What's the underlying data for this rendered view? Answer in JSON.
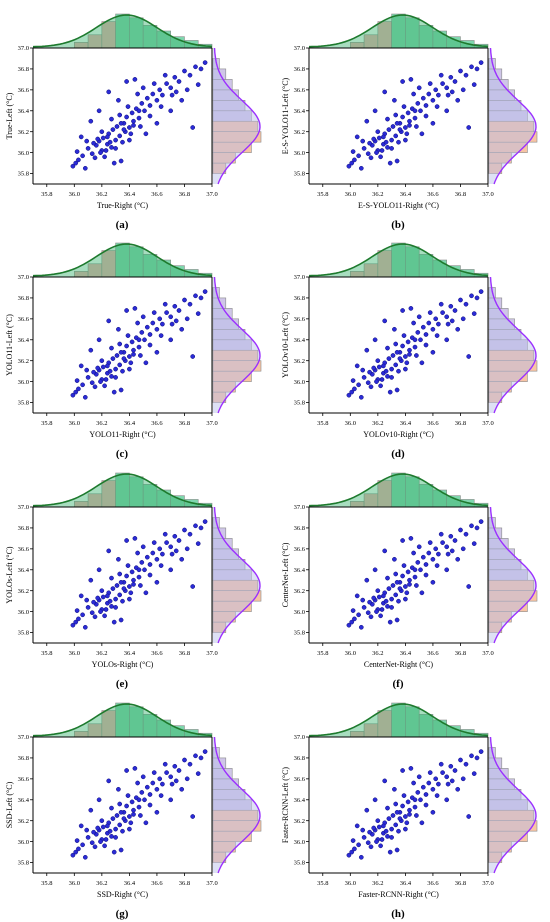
{
  "colors": {
    "point": "#2b2bd6",
    "point_edge": "#0c0c7a",
    "top_hist_left": "#f4aeb0",
    "top_hist_right": "#7fd6ae",
    "top_fill": "#3cb371",
    "top_curve": "#1e7a2e",
    "right_hist_bottom": "#f7c4a4",
    "right_hist_top": "#cfc6e8",
    "right_fill": "#b6bce8",
    "right_curve": "#9b30ff",
    "axis": "#000000"
  },
  "axis_ticks": {
    "x": [
      "35.8",
      "36.0",
      "36.2",
      "36.4",
      "36.6",
      "36.8",
      "37.0"
    ],
    "y": [
      "35.8",
      "36.0",
      "36.2",
      "36.4",
      "36.6",
      "36.8",
      "37.0"
    ]
  },
  "panels": [
    {
      "label": "(a)",
      "xlabel": "True-Right (°C)",
      "ylabel": "True-Left (°C)"
    },
    {
      "label": "(b)",
      "xlabel": "E-S-YOLO11-Right (°C)",
      "ylabel": "E-S-YOLO11-Left (°C)"
    },
    {
      "label": "(c)",
      "xlabel": "YOLO11-Right (°C)",
      "ylabel": "YOLO11-Left (°C)"
    },
    {
      "label": "(d)",
      "xlabel": "YOLOv10-Right (°C)",
      "ylabel": "YOLOv10-Left (°C)"
    },
    {
      "label": "(e)",
      "xlabel": "YOLOs-Right (°C)",
      "ylabel": "YOLOs-Left (°C)"
    },
    {
      "label": "(f)",
      "xlabel": "CenterNet-Right (°C)",
      "ylabel": "CenterNet-Left (°C)"
    },
    {
      "label": "(g)",
      "xlabel": "SSD-Right (°C)",
      "ylabel": "SSD-Left (°C)"
    },
    {
      "label": "(h)",
      "xlabel": "Faster-RCNN-Right (°C)",
      "ylabel": "Faster-RCNN-Left (°C)"
    }
  ],
  "chart_data": {
    "type": "scatter",
    "xlim": [
      35.7,
      37.0
    ],
    "ylim": [
      35.7,
      37.0
    ],
    "grid": false,
    "marginals": "histograms with normal-fit curves on top (x) and right (y)",
    "points": [
      [
        35.99,
        35.87
      ],
      [
        36.01,
        35.9
      ],
      [
        36.03,
        35.93
      ],
      [
        36.06,
        35.97
      ],
      [
        36.1,
        36.04
      ],
      [
        36.13,
        35.99
      ],
      [
        36.16,
        36.07
      ],
      [
        36.18,
        36.11
      ],
      [
        36.2,
        36.02
      ],
      [
        36.21,
        36.14
      ],
      [
        36.22,
        35.96
      ],
      [
        36.24,
        36.08
      ],
      [
        36.25,
        36.18
      ],
      [
        36.27,
        36.05
      ],
      [
        36.28,
        36.22
      ],
      [
        36.3,
        36.12
      ],
      [
        36.31,
        36.25
      ],
      [
        36.33,
        36.16
      ],
      [
        36.34,
        35.92
      ],
      [
        36.36,
        36.28
      ],
      [
        36.37,
        36.2
      ],
      [
        36.38,
        36.34
      ],
      [
        36.4,
        36.24
      ],
      [
        36.42,
        36.38
      ],
      [
        36.43,
        36.3
      ],
      [
        36.45,
        36.42
      ],
      [
        36.47,
        36.33
      ],
      [
        36.49,
        36.47
      ],
      [
        36.51,
        36.4
      ],
      [
        36.53,
        36.52
      ],
      [
        36.55,
        36.45
      ],
      [
        36.57,
        36.56
      ],
      [
        36.6,
        36.5
      ],
      [
        36.62,
        36.6
      ],
      [
        36.64,
        36.55
      ],
      [
        36.67,
        36.66
      ],
      [
        36.7,
        36.62
      ],
      [
        36.73,
        36.72
      ],
      [
        36.76,
        36.68
      ],
      [
        36.8,
        36.78
      ],
      [
        36.84,
        36.74
      ],
      [
        36.88,
        36.82
      ],
      [
        36.92,
        36.8
      ],
      [
        36.95,
        36.86
      ],
      [
        36.12,
        36.3
      ],
      [
        36.18,
        36.4
      ],
      [
        36.25,
        36.58
      ],
      [
        36.32,
        36.5
      ],
      [
        36.38,
        36.68
      ],
      [
        36.44,
        36.7
      ],
      [
        36.52,
        36.18
      ],
      [
        36.6,
        36.28
      ],
      [
        36.7,
        36.4
      ],
      [
        36.78,
        36.5
      ],
      [
        36.86,
        36.24
      ],
      [
        36.05,
        36.15
      ],
      [
        36.08,
        35.85
      ],
      [
        36.15,
        35.95
      ],
      [
        36.23,
        36.02
      ],
      [
        36.29,
        35.9
      ],
      [
        36.35,
        36.1
      ],
      [
        36.41,
        36.18
      ],
      [
        36.48,
        36.25
      ],
      [
        36.55,
        36.35
      ],
      [
        36.63,
        36.44
      ],
      [
        36.71,
        36.55
      ],
      [
        36.82,
        36.6
      ],
      [
        36.9,
        36.65
      ],
      [
        36.2,
        36.2
      ],
      [
        36.26,
        36.1
      ],
      [
        36.33,
        36.36
      ],
      [
        36.39,
        36.44
      ],
      [
        36.46,
        36.56
      ],
      [
        36.5,
        36.62
      ],
      [
        36.58,
        36.66
      ],
      [
        36.66,
        36.74
      ],
      [
        36.74,
        36.58
      ],
      [
        36.14,
        36.09
      ],
      [
        36.19,
        36.0
      ],
      [
        36.24,
        36.15
      ],
      [
        36.3,
        36.04
      ],
      [
        36.36,
        36.22
      ],
      [
        36.43,
        36.26
      ],
      [
        36.02,
        36.01
      ],
      [
        36.09,
        36.11
      ],
      [
        36.17,
        36.13
      ],
      [
        36.27,
        36.32
      ],
      [
        36.34,
        36.28
      ],
      [
        36.4,
        36.12
      ],
      [
        36.47,
        36.4
      ]
    ],
    "histogram_x": {
      "bins": [
        36.0,
        36.1,
        36.2,
        36.3,
        36.4,
        36.5,
        36.6,
        36.7,
        36.8,
        36.9,
        37.0
      ],
      "counts": [
        3,
        7,
        14,
        18,
        16,
        12,
        9,
        6,
        4,
        2
      ]
    },
    "histogram_y": {
      "bins": [
        35.8,
        35.9,
        36.0,
        36.1,
        36.2,
        36.3,
        36.4,
        36.5,
        36.6,
        36.7,
        36.8,
        36.9
      ],
      "counts": [
        4,
        7,
        12,
        15,
        14,
        12,
        10,
        8,
        6,
        4,
        2
      ]
    },
    "fit_x": {
      "mean": 36.38,
      "sd": 0.22
    },
    "fit_y": {
      "mean": 36.25,
      "sd": 0.25
    }
  }
}
